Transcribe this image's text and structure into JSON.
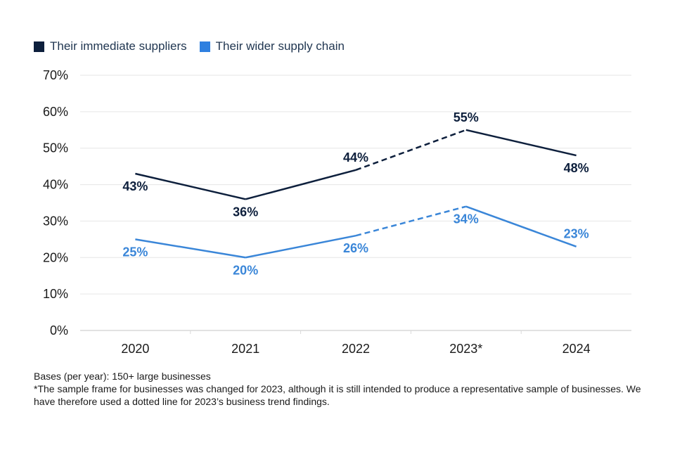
{
  "legend": [
    {
      "label": "Their immediate suppliers",
      "color": "#0d1f3c"
    },
    {
      "label": "Their wider supply chain",
      "color": "#2f80e0"
    }
  ],
  "footnotes": {
    "bases": "Bases (per year): 150+ large businesses",
    "note": "*The sample frame for businesses was changed for 2023, although it is still intended to produce a representative sample of businesses. We have therefore used a dotted line for 2023’s business trend findings."
  },
  "chart_data": {
    "type": "line",
    "title": "",
    "xlabel": "",
    "ylabel": "",
    "categories": [
      "2020",
      "2021",
      "2022",
      "2023*",
      "2024"
    ],
    "ylim": [
      0,
      70
    ],
    "yticks": [
      0,
      10,
      20,
      30,
      40,
      50,
      60,
      70
    ],
    "ytick_labels": [
      "0%",
      "10%",
      "20%",
      "30%",
      "40%",
      "50%",
      "60%",
      "70%"
    ],
    "grid": true,
    "legend_position": "top-left",
    "dashed_segments": "2022 to 2023*",
    "series": [
      {
        "name": "Their immediate suppliers",
        "color": "#0d1f3c",
        "values": [
          43,
          36,
          44,
          55,
          48
        ],
        "labels": [
          "43%",
          "36%",
          "44%",
          "55%",
          "48%"
        ],
        "label_positions": [
          "below",
          "below",
          "above",
          "above",
          "below"
        ]
      },
      {
        "name": "Their wider supply chain",
        "color": "#3a86d8",
        "values": [
          25,
          20,
          26,
          34,
          23
        ],
        "labels": [
          "25%",
          "20%",
          "26%",
          "34%",
          "23%"
        ],
        "label_positions": [
          "below",
          "below",
          "below",
          "below",
          "above"
        ]
      }
    ]
  }
}
